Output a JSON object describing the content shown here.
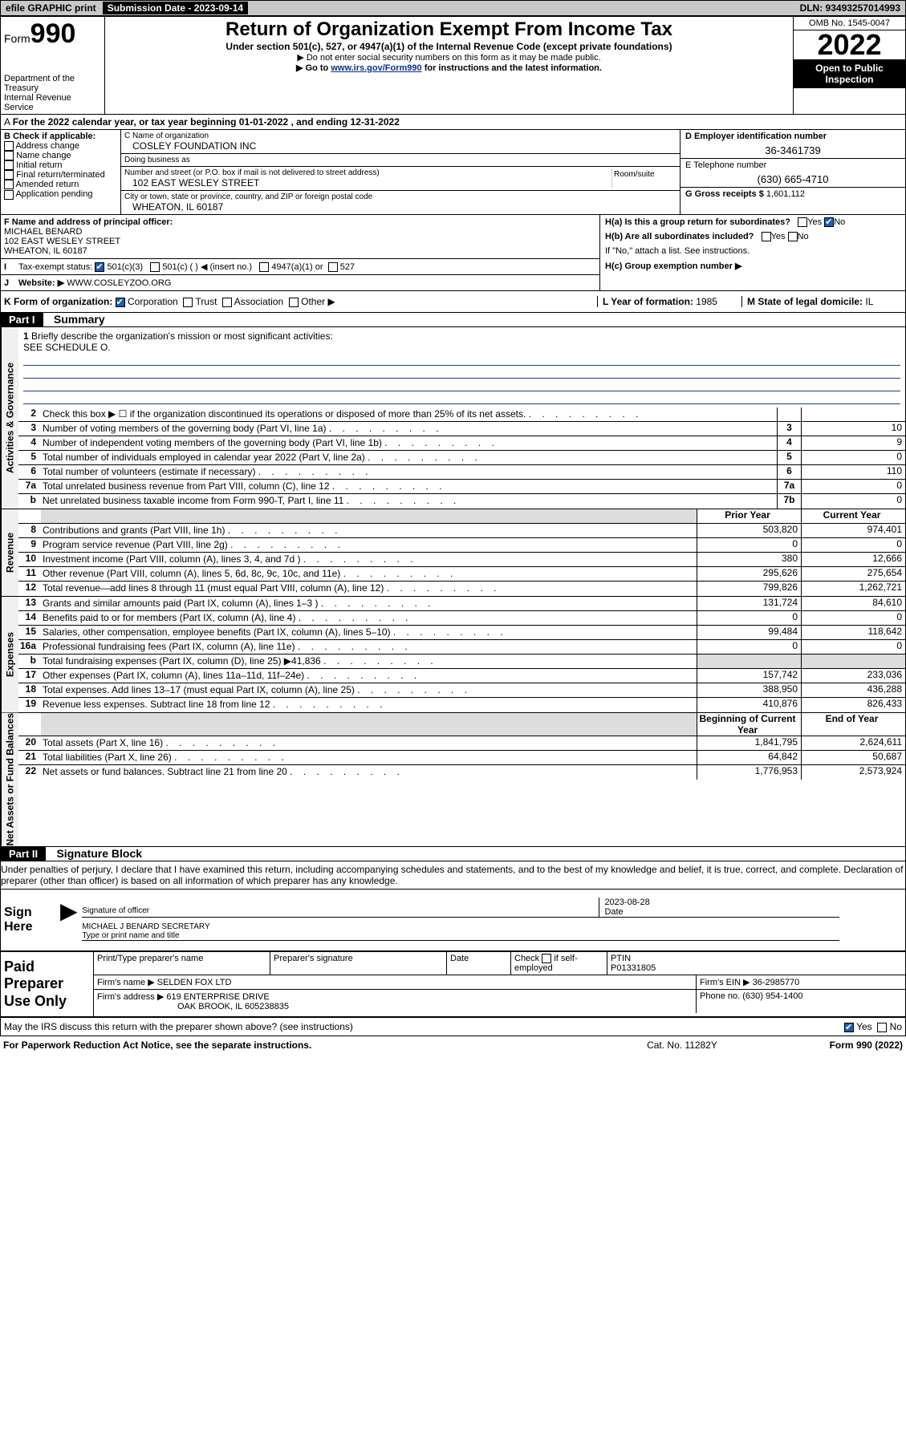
{
  "topbar": {
    "efile": "efile GRAPHIC print",
    "submission_label": "Submission Date - 2023-09-14",
    "dln": "DLN: 93493257014993"
  },
  "header": {
    "form_label": "Form",
    "form_num": "990",
    "dept": "Department of the Treasury",
    "irs": "Internal Revenue Service",
    "title": "Return of Organization Exempt From Income Tax",
    "subtitle": "Under section 501(c), 527, or 4947(a)(1) of the Internal Revenue Code (except private foundations)",
    "note1": "▶ Do not enter social security numbers on this form as it may be made public.",
    "note2_pre": "▶ Go to ",
    "note2_link": "www.irs.gov/Form990",
    "note2_post": " for instructions and the latest information.",
    "omb": "OMB No. 1545-0047",
    "year": "2022",
    "open": "Open to Public Inspection"
  },
  "row_a": "For the 2022 calendar year, or tax year beginning 01-01-2022    , and ending 12-31-2022",
  "b": {
    "label": "B Check if applicable:",
    "opts": [
      "Address change",
      "Name change",
      "Initial return",
      "Final return/terminated",
      "Amended return",
      "Application pending"
    ]
  },
  "c": {
    "name_label": "C Name of organization",
    "name": "COSLEY FOUNDATION INC",
    "dba_label": "Doing business as",
    "dba": "",
    "street_label": "Number and street (or P.O. box if mail is not delivered to street address)",
    "room_label": "Room/suite",
    "street": "102 EAST WESLEY STREET",
    "city_label": "City or town, state or province, country, and ZIP or foreign postal code",
    "city": "WHEATON, IL  60187"
  },
  "d": {
    "label": "D Employer identification number",
    "val": "36-3461739"
  },
  "e": {
    "label": "E Telephone number",
    "val": "(630) 665-4710"
  },
  "g": {
    "label": "G Gross receipts $",
    "val": "1,601,112"
  },
  "f": {
    "label": "F  Name and address of principal officer:",
    "name": "MICHAEL BENARD",
    "street": "102 EAST WESLEY STREET",
    "city": "WHEATON, IL  60187"
  },
  "i": {
    "label": "Tax-exempt status:",
    "o1": "501(c)(3)",
    "o2": "501(c) (  ) ◀ (insert no.)",
    "o3": "4947(a)(1) or",
    "o4": "527"
  },
  "j": {
    "label": "Website: ▶",
    "val": "WWW.COSLEYZOO.ORG"
  },
  "h": {
    "a": "H(a)  Is this a group return for subordinates?",
    "b": "H(b)  Are all subordinates included?",
    "b_note": "If \"No,\" attach a list. See instructions.",
    "c": "H(c)  Group exemption number ▶",
    "yes": "Yes",
    "no": "No"
  },
  "k": {
    "label": "K Form of organization:",
    "o1": "Corporation",
    "o2": "Trust",
    "o3": "Association",
    "o4": "Other ▶"
  },
  "l": {
    "label": "L Year of formation:",
    "val": "1985"
  },
  "m": {
    "label": "M State of legal domicile:",
    "val": "IL"
  },
  "part1": {
    "hdr": "Part I",
    "title": "Summary"
  },
  "briefly": {
    "num": "1",
    "txt": "Briefly describe the organization's mission or most significant activities:",
    "ans": "SEE SCHEDULE O."
  },
  "vtabs": {
    "gov": "Activities & Governance",
    "rev": "Revenue",
    "exp": "Expenses",
    "net": "Net Assets or Fund Balances"
  },
  "gov_lines": [
    {
      "n": "2",
      "t": "Check this box ▶ ☐  if the organization discontinued its operations or disposed of more than 25% of its net assets.",
      "box": "",
      "v": ""
    },
    {
      "n": "3",
      "t": "Number of voting members of the governing body (Part VI, line 1a)",
      "box": "3",
      "v": "10"
    },
    {
      "n": "4",
      "t": "Number of independent voting members of the governing body (Part VI, line 1b)",
      "box": "4",
      "v": "9"
    },
    {
      "n": "5",
      "t": "Total number of individuals employed in calendar year 2022 (Part V, line 2a)",
      "box": "5",
      "v": "0"
    },
    {
      "n": "6",
      "t": "Total number of volunteers (estimate if necessary)",
      "box": "6",
      "v": "110"
    },
    {
      "n": "7a",
      "t": "Total unrelated business revenue from Part VIII, column (C), line 12",
      "box": "7a",
      "v": "0"
    },
    {
      "n": "b",
      "t": "Net unrelated business taxable income from Form 990-T, Part I, line 11",
      "box": "7b",
      "v": "0"
    }
  ],
  "col_hdrs": {
    "prior": "Prior Year",
    "current": "Current Year",
    "begin": "Beginning of Current Year",
    "end": "End of Year"
  },
  "rev_lines": [
    {
      "n": "8",
      "t": "Contributions and grants (Part VIII, line 1h)",
      "p": "503,820",
      "c": "974,401"
    },
    {
      "n": "9",
      "t": "Program service revenue (Part VIII, line 2g)",
      "p": "0",
      "c": "0"
    },
    {
      "n": "10",
      "t": "Investment income (Part VIII, column (A), lines 3, 4, and 7d )",
      "p": "380",
      "c": "12,666"
    },
    {
      "n": "11",
      "t": "Other revenue (Part VIII, column (A), lines 5, 6d, 8c, 9c, 10c, and 11e)",
      "p": "295,626",
      "c": "275,654"
    },
    {
      "n": "12",
      "t": "Total revenue—add lines 8 through 11 (must equal Part VIII, column (A), line 12)",
      "p": "799,826",
      "c": "1,262,721"
    }
  ],
  "exp_lines": [
    {
      "n": "13",
      "t": "Grants and similar amounts paid (Part IX, column (A), lines 1–3 )",
      "p": "131,724",
      "c": "84,610"
    },
    {
      "n": "14",
      "t": "Benefits paid to or for members (Part IX, column (A), line 4)",
      "p": "0",
      "c": "0"
    },
    {
      "n": "15",
      "t": "Salaries, other compensation, employee benefits (Part IX, column (A), lines 5–10)",
      "p": "99,484",
      "c": "118,642"
    },
    {
      "n": "16a",
      "t": "Professional fundraising fees (Part IX, column (A), line 11e)",
      "p": "0",
      "c": "0"
    },
    {
      "n": "b",
      "t": "Total fundraising expenses (Part IX, column (D), line 25) ▶41,836",
      "p": "",
      "c": "",
      "shade": true
    },
    {
      "n": "17",
      "t": "Other expenses (Part IX, column (A), lines 11a–11d, 11f–24e)",
      "p": "157,742",
      "c": "233,036"
    },
    {
      "n": "18",
      "t": "Total expenses. Add lines 13–17 (must equal Part IX, column (A), line 25)",
      "p": "388,950",
      "c": "436,288"
    },
    {
      "n": "19",
      "t": "Revenue less expenses. Subtract line 18 from line 12",
      "p": "410,876",
      "c": "826,433"
    }
  ],
  "net_lines": [
    {
      "n": "20",
      "t": "Total assets (Part X, line 16)",
      "p": "1,841,795",
      "c": "2,624,611"
    },
    {
      "n": "21",
      "t": "Total liabilities (Part X, line 26)",
      "p": "64,842",
      "c": "50,687"
    },
    {
      "n": "22",
      "t": "Net assets or fund balances. Subtract line 21 from line 20",
      "p": "1,776,953",
      "c": "2,573,924"
    }
  ],
  "part2": {
    "hdr": "Part II",
    "title": "Signature Block"
  },
  "penalty": "Under penalties of perjury, I declare that I have examined this return, including accompanying schedules and statements, and to the best of my knowledge and belief, it is true, correct, and complete. Declaration of preparer (other than officer) is based on all information of which preparer has any knowledge.",
  "sign": {
    "here": "Sign Here",
    "sig_of_officer": "Signature of officer",
    "date_label": "Date",
    "date": "2023-08-28",
    "name": "MICHAEL J BENARD  SECRETARY",
    "name_label": "Type or print name and title"
  },
  "prep": {
    "title": "Paid Preparer Use Only",
    "h1": "Print/Type preparer's name",
    "h2": "Preparer's signature",
    "h3": "Date",
    "h4a": "Check",
    "h4b": "if self-employed",
    "h5": "PTIN",
    "ptin": "P01331805",
    "firm_name_label": "Firm's name    ▶",
    "firm_name": "SELDEN FOX LTD",
    "firm_ein_label": "Firm's EIN ▶",
    "firm_ein": "36-2985770",
    "firm_addr_label": "Firm's address ▶",
    "firm_addr1": "619 ENTERPRISE DRIVE",
    "firm_addr2": "OAK BROOK, IL  605238835",
    "phone_label": "Phone no.",
    "phone": "(630) 954-1400"
  },
  "may_discuss": "May the IRS discuss this return with the preparer shown above? (see instructions)",
  "footer": {
    "left": "For Paperwork Reduction Act Notice, see the separate instructions.",
    "mid": "Cat. No. 11282Y",
    "right": "Form 990 (2022)"
  }
}
